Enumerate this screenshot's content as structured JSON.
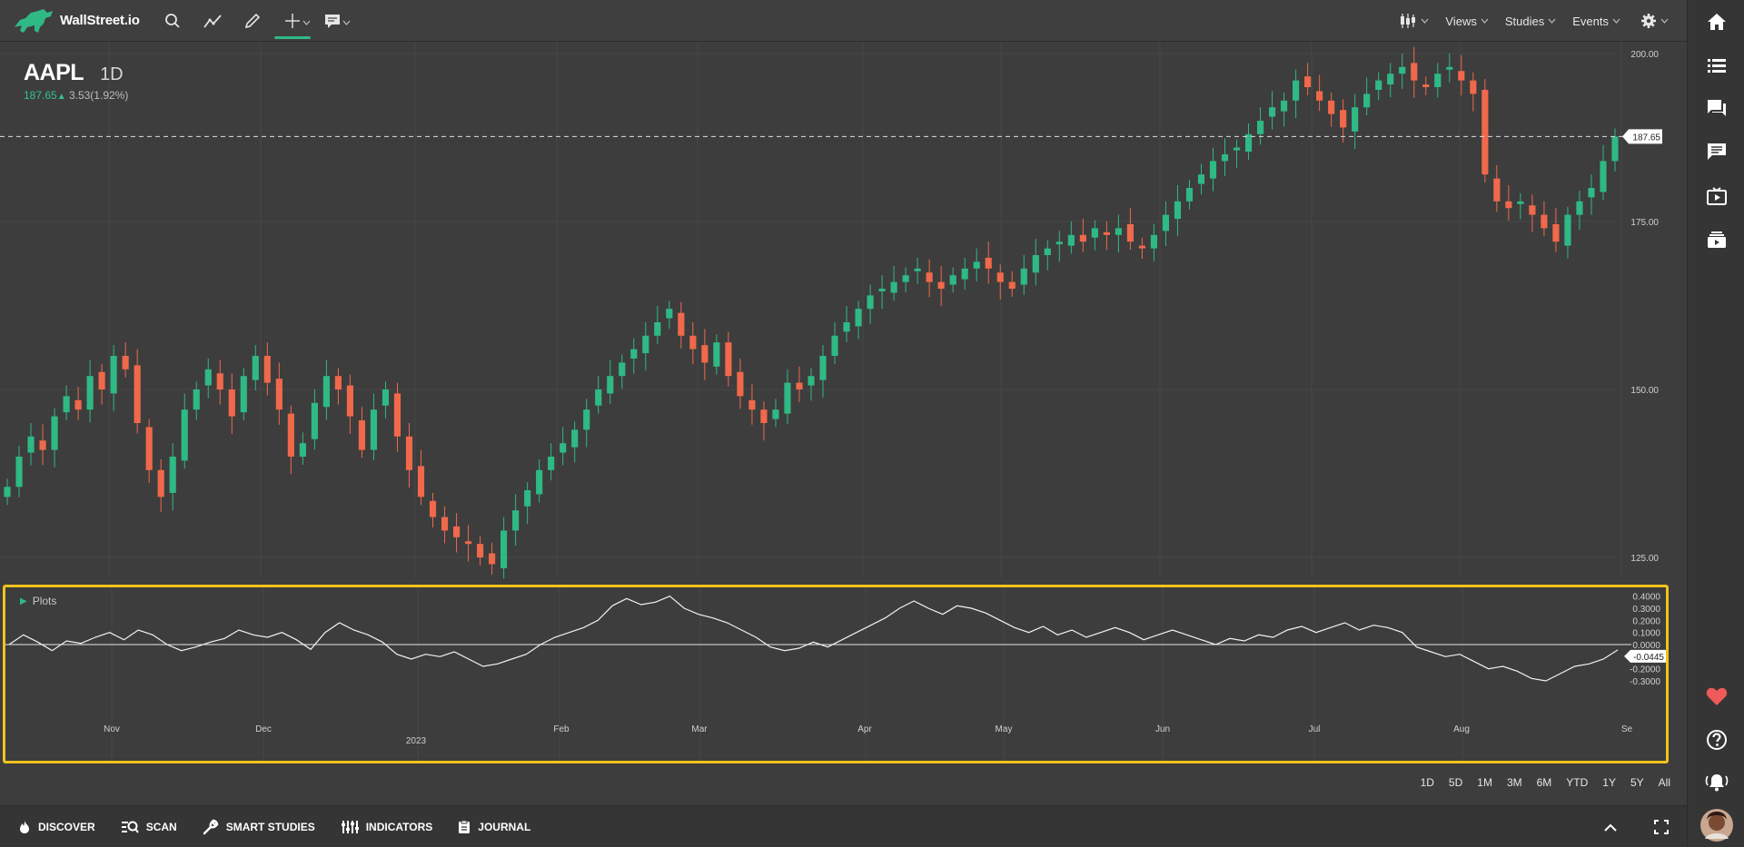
{
  "app": {
    "logo_text": "WallStreet.io"
  },
  "toolbar": {
    "menus": [
      {
        "label": "Views"
      },
      {
        "label": "Studies"
      },
      {
        "label": "Events"
      }
    ]
  },
  "symbol": {
    "ticker": "AAPL",
    "interval": "1D",
    "price": "187.65",
    "change": "3.53(1.92%)"
  },
  "colors": {
    "up": "#2fb985",
    "down": "#f0694a",
    "accent": "#2fb985",
    "highlight": "#f2c21b"
  },
  "price_axis": {
    "ticks": [
      "200.00",
      "175.00",
      "150.00",
      "125.00"
    ],
    "current_price_label": "187.65"
  },
  "plots_panel": {
    "label": "Plots",
    "current_value_label": "-0.0445",
    "y_ticks": [
      "0.4000",
      "0.3000",
      "0.2000",
      "0.1000",
      "0.0000",
      "-0.1000",
      "-0.2000",
      "-0.3000"
    ]
  },
  "time_axis": {
    "months": [
      "Nov",
      "Dec",
      "Feb",
      "Mar",
      "Apr",
      "May",
      "Jun",
      "Jul",
      "Aug",
      "Se"
    ],
    "year_label": "2023"
  },
  "range_buttons": [
    "1D",
    "5D",
    "1M",
    "3M",
    "6M",
    "YTD",
    "1Y",
    "5Y",
    "All"
  ],
  "bottom_nav": [
    {
      "label": "DISCOVER",
      "icon": "flame-icon"
    },
    {
      "label": "SCAN",
      "icon": "scan-icon"
    },
    {
      "label": "SMART STUDIES",
      "icon": "wrench-icon"
    },
    {
      "label": "INDICATORS",
      "icon": "indicators-icon"
    },
    {
      "label": "JOURNAL",
      "icon": "journal-icon"
    }
  ],
  "right_sidebar_icons": [
    "home-icon",
    "watchlist-icon",
    "chat-icon",
    "comments-icon",
    "video-icon",
    "layers-icon",
    "heart-icon",
    "help-icon",
    "alerts-icon",
    "user-avatar"
  ],
  "chart_data": {
    "type": "candlestick",
    "ylim": [
      122,
      202
    ],
    "close_series": [
      135.5,
      140,
      143,
      141,
      146,
      149,
      147,
      152,
      150,
      155,
      153,
      145,
      138,
      134,
      140,
      147,
      150,
      153,
      150,
      146,
      152,
      155,
      151,
      147,
      140,
      142,
      148,
      152,
      150,
      146,
      141,
      147,
      150,
      143,
      138,
      134,
      131,
      129,
      128,
      127,
      125,
      124,
      129,
      132,
      135,
      138,
      140,
      142,
      144,
      147,
      150,
      152,
      154,
      156,
      158,
      160,
      162,
      158,
      156,
      154,
      157,
      152,
      149,
      147,
      145,
      147,
      151,
      150,
      152,
      155,
      158,
      160,
      162,
      164,
      165,
      166,
      167,
      168,
      166,
      165,
      167,
      168,
      169,
      168,
      166,
      165,
      168,
      170,
      171,
      172,
      173,
      172,
      174,
      173,
      174,
      172,
      171,
      173,
      176,
      178,
      180,
      182,
      184,
      185,
      186,
      188,
      190,
      192,
      193,
      196,
      195,
      193,
      191,
      189,
      192,
      194,
      196,
      197,
      198,
      196,
      195,
      197,
      198,
      196,
      194,
      182,
      178,
      177,
      178,
      176,
      174,
      172,
      176,
      178,
      180,
      184,
      187.65
    ],
    "osc_series": [
      0,
      0.08,
      0.02,
      -0.05,
      0.03,
      0.01,
      0.06,
      0.1,
      0.04,
      0.12,
      0.08,
      0,
      -0.05,
      -0.02,
      0.02,
      0.05,
      0.12,
      0.08,
      0.06,
      0.1,
      0.04,
      -0.04,
      0.1,
      0.18,
      0.12,
      0.08,
      0.02,
      -0.08,
      -0.12,
      -0.08,
      -0.1,
      -0.06,
      -0.12,
      -0.18,
      -0.16,
      -0.12,
      -0.08,
      0,
      0.06,
      0.1,
      0.14,
      0.2,
      0.32,
      0.38,
      0.33,
      0.35,
      0.4,
      0.3,
      0.25,
      0.22,
      0.18,
      0.12,
      0.06,
      -0.02,
      -0.05,
      -0.03,
      0.02,
      -0.02,
      0.04,
      0.1,
      0.16,
      0.22,
      0.3,
      0.36,
      0.3,
      0.25,
      0.32,
      0.3,
      0.26,
      0.2,
      0.14,
      0.1,
      0.15,
      0.08,
      0.12,
      0.06,
      0.1,
      0.14,
      0.1,
      0.04,
      0.08,
      0.12,
      0.08,
      0.04,
      0,
      0.05,
      0.03,
      0.08,
      0.06,
      0.12,
      0.15,
      0.1,
      0.14,
      0.18,
      0.12,
      0.16,
      0.14,
      0.1,
      -0.02,
      -0.06,
      -0.1,
      -0.08,
      -0.14,
      -0.2,
      -0.18,
      -0.22,
      -0.28,
      -0.3,
      -0.24,
      -0.18,
      -0.16,
      -0.12,
      -0.0445
    ],
    "osc_ylim": [
      -0.33,
      0.42
    ]
  }
}
